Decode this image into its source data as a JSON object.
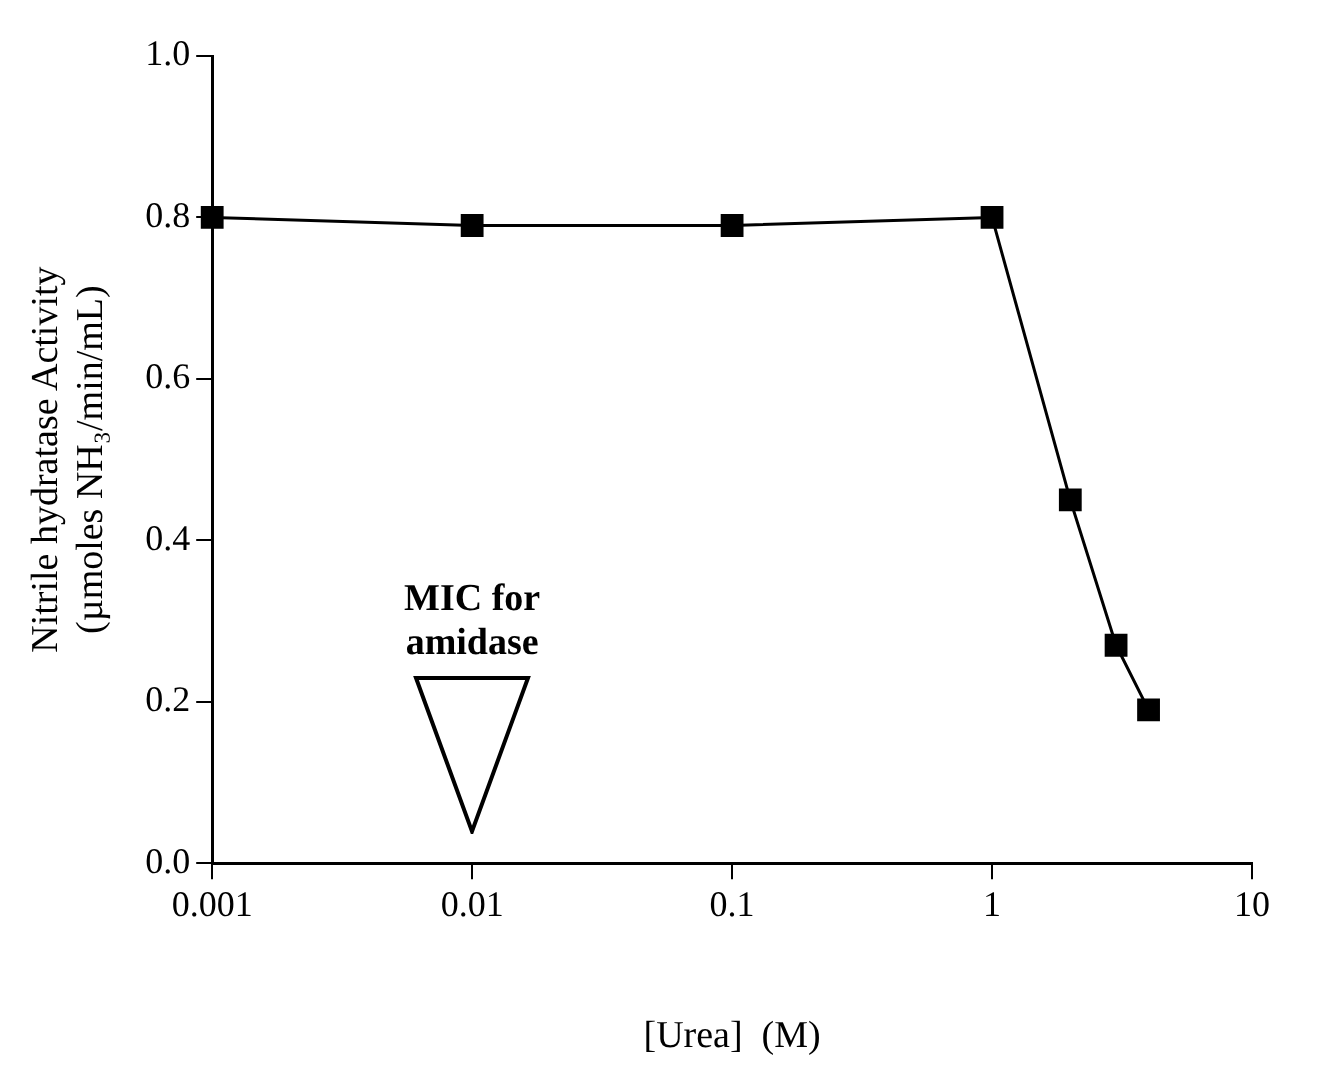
{
  "chart_data": {
    "type": "line",
    "xlabel": "[Urea]  (M)",
    "ylabel": "Nitrile hydratase Activity\n(µmoles NH₃/min/mL)",
    "x": [
      0.001,
      0.01,
      0.1,
      1,
      2,
      3,
      4
    ],
    "series": [
      {
        "color": "#000000",
        "values": [
          0.8,
          0.79,
          0.79,
          0.8,
          0.45,
          0.27,
          0.19
        ]
      }
    ],
    "log": "x",
    "xlim": [
      0.001,
      10
    ],
    "xticks": [
      0.001,
      0.01,
      0.1,
      1,
      10
    ],
    "ylim": [
      0,
      1
    ],
    "yticks": [
      {
        "value": 0,
        "label": "0.0"
      },
      {
        "value": 0.2,
        "label": "0.2"
      },
      {
        "value": 0.4,
        "label": "0.4"
      },
      {
        "value": 0.6,
        "label": "0.6"
      },
      {
        "value": 0.8,
        "label": "0.8"
      },
      {
        "value": 1,
        "label": "1.0"
      }
    ],
    "grid": false,
    "legend": false,
    "marker": "square",
    "line_style": "solid",
    "annotations": [
      "MIC for amidase"
    ]
  }
}
